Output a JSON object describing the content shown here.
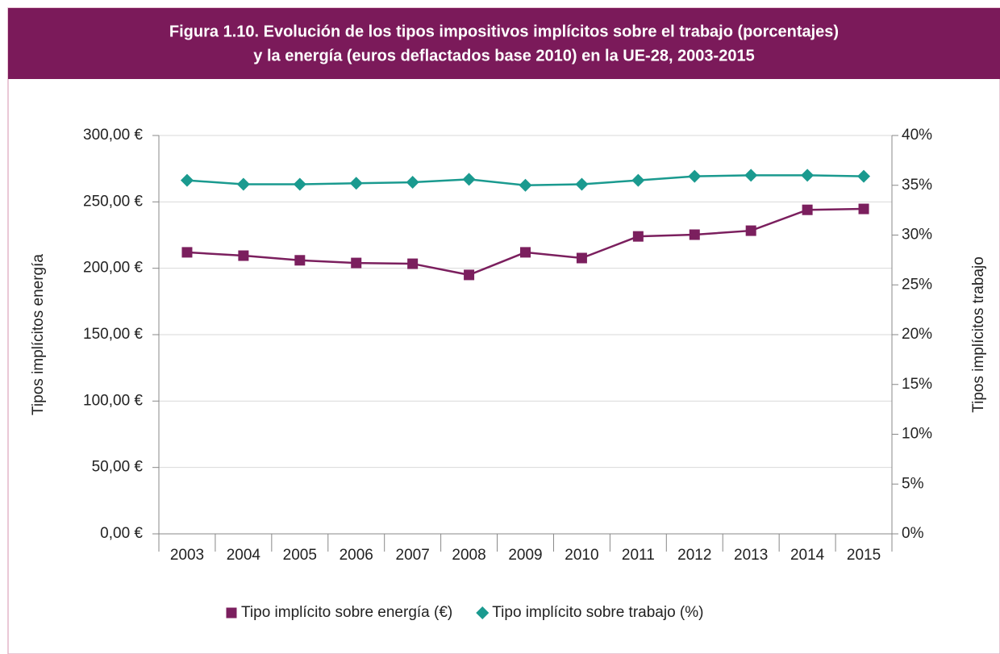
{
  "chart_data": {
    "type": "line",
    "title": [
      "Figura 1.10. Evolución de los tipos impositivos implícitos sobre el trabajo (porcentajes)",
      "y la energía (euros deflactados base 2010) en la UE-28, 2003-2015"
    ],
    "y_label": "Tipos implícitos energía",
    "y2_label": "Tipos implícitos trabajo",
    "categories": [
      "2003",
      "2004",
      "2005",
      "2006",
      "2007",
      "2008",
      "2009",
      "2010",
      "2011",
      "2012",
      "2013",
      "2014",
      "2015"
    ],
    "series": [
      {
        "name": "Tipo implícito sobre energía (€)",
        "color": "#7b1f5e",
        "marker": "square",
        "values": [
          212,
          209.5,
          206,
          204,
          203.4,
          195,
          212,
          207.7,
          224,
          225.3,
          228.3,
          244,
          244.7
        ]
      },
      {
        "name": "Tipo implícito sobre trabajo (%)",
        "color": "#1a9a8f",
        "marker": "diamond",
        "axis": "y2",
        "values": [
          35.5,
          35.1,
          35.1,
          35.2,
          35.3,
          35.6,
          35.0,
          35.1,
          35.5,
          35.9,
          36.0,
          36.0,
          35.9
        ]
      }
    ],
    "ylim": [
      0,
      300
    ],
    "yticks": [
      {
        "value": 0,
        "label": "0,00 €"
      },
      {
        "value": 50,
        "label": "50,00 €"
      },
      {
        "value": 100,
        "label": "100,00 €"
      },
      {
        "value": 150,
        "label": "150,00 €"
      },
      {
        "value": 200,
        "label": "200,00 €"
      },
      {
        "value": 250,
        "label": "250,00 €"
      },
      {
        "value": 300,
        "label": "300,00 €"
      }
    ],
    "y2lim": [
      0,
      40
    ],
    "y2ticks": [
      {
        "value": 0,
        "label": "0%"
      },
      {
        "value": 5,
        "label": "5%"
      },
      {
        "value": 10,
        "label": "10%"
      },
      {
        "value": 15,
        "label": "15%"
      },
      {
        "value": 20,
        "label": "20%"
      },
      {
        "value": 25,
        "label": "25%"
      },
      {
        "value": 30,
        "label": "30%"
      },
      {
        "value": 35,
        "label": "35%"
      },
      {
        "value": 40,
        "label": "40%"
      }
    ],
    "grid": true,
    "legend": "bottom"
  }
}
